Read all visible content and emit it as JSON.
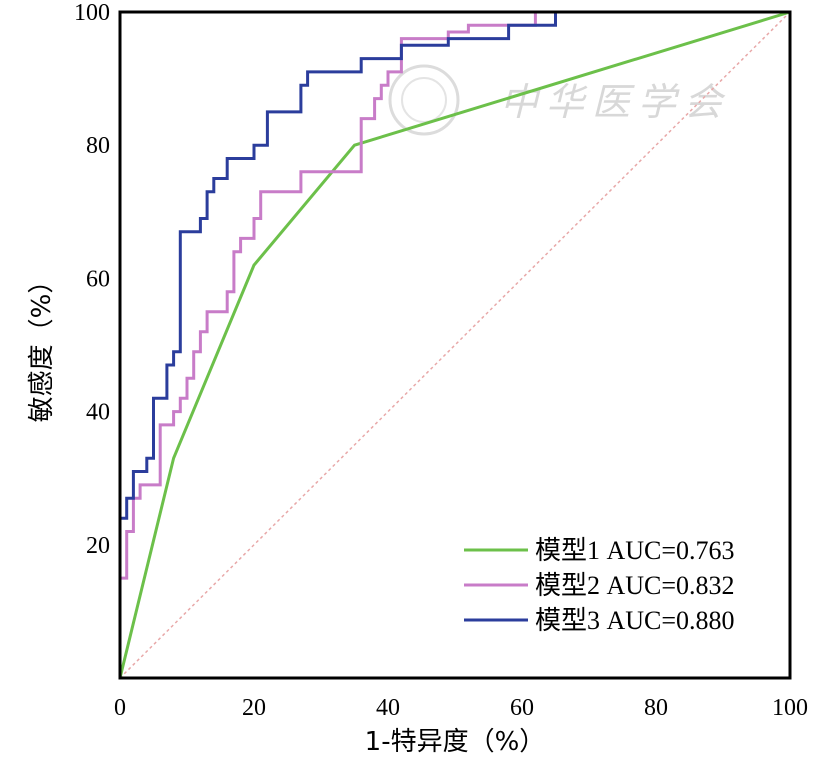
{
  "chart_data": {
    "type": "line",
    "title": "",
    "xlabel": "1-特异度（%）",
    "ylabel": "敏感度（%）",
    "xlim": [
      0,
      100
    ],
    "ylim": [
      0,
      100
    ],
    "x_ticks": [
      "0",
      "20",
      "40",
      "60",
      "80",
      "100"
    ],
    "y_ticks": [
      "20",
      "40",
      "60",
      "80",
      "100"
    ],
    "grid": false,
    "legend_position": "bottom-right",
    "reference_line": {
      "name": "diagonal",
      "color": "#e8a8a8",
      "points": [
        [
          0,
          0
        ],
        [
          100,
          100
        ]
      ]
    },
    "watermark": "中华医学会",
    "series": [
      {
        "name": "模型1 AUC=0.763",
        "color": "#6cc04a",
        "x": [
          0,
          8,
          20,
          35,
          100
        ],
        "y": [
          0,
          33,
          62,
          80,
          100
        ]
      },
      {
        "name": "模型2 AUC=0.832",
        "color": "#c87cc8",
        "x": [
          0,
          0,
          1,
          1,
          2,
          2,
          3,
          3,
          6,
          6,
          8,
          8,
          9,
          9,
          10,
          10,
          11,
          11,
          12,
          12,
          13,
          13,
          16,
          16,
          17,
          17,
          18,
          18,
          20,
          20,
          21,
          21,
          23,
          23,
          27,
          27,
          36,
          36,
          38,
          38,
          39,
          39,
          40,
          40,
          42,
          42,
          49,
          49,
          52,
          52,
          62,
          62,
          65,
          65,
          100
        ],
        "y": [
          0,
          15,
          15,
          22,
          22,
          27,
          27,
          29,
          29,
          38,
          38,
          40,
          40,
          42,
          42,
          45,
          45,
          49,
          49,
          52,
          52,
          55,
          55,
          58,
          58,
          64,
          64,
          66,
          66,
          69,
          69,
          73,
          73,
          73,
          73,
          76,
          76,
          84,
          84,
          87,
          87,
          89,
          89,
          91,
          91,
          96,
          96,
          97,
          97,
          98,
          98,
          100,
          100,
          100,
          100
        ]
      },
      {
        "name": "模型3 AUC=0.880",
        "color": "#2b3d9c",
        "x": [
          0,
          0,
          1,
          1,
          2,
          2,
          3,
          3,
          4,
          4,
          5,
          5,
          6,
          6,
          7,
          7,
          8,
          8,
          9,
          9,
          11,
          11,
          12,
          12,
          13,
          13,
          14,
          14,
          16,
          16,
          18,
          18,
          20,
          20,
          22,
          22,
          27,
          27,
          28,
          28,
          36,
          36,
          42,
          42,
          49,
          49,
          52,
          52,
          58,
          58,
          65,
          65,
          100
        ],
        "y": [
          0,
          24,
          24,
          27,
          27,
          31,
          31,
          31,
          31,
          33,
          33,
          42,
          42,
          42,
          42,
          47,
          47,
          49,
          49,
          67,
          67,
          67,
          67,
          69,
          69,
          73,
          73,
          75,
          75,
          78,
          78,
          78,
          78,
          80,
          80,
          85,
          85,
          89,
          89,
          91,
          91,
          93,
          93,
          95,
          95,
          96,
          96,
          96,
          96,
          98,
          98,
          100,
          100
        ]
      }
    ]
  }
}
